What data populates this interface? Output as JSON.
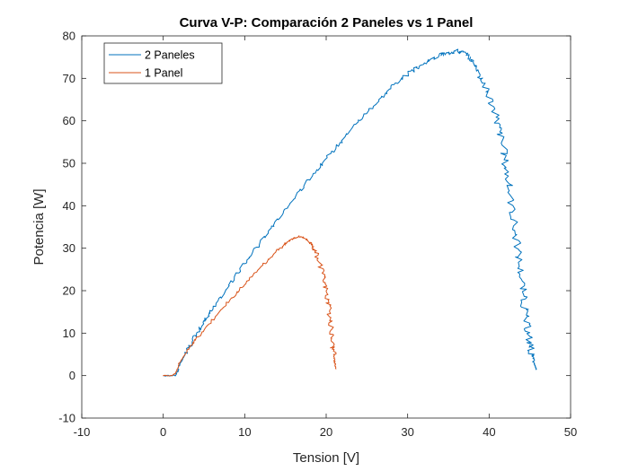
{
  "chart_data": {
    "type": "line",
    "title": "Curva V-P: Comparación 2 Paneles vs 1 Panel",
    "xlabel": "Tension [V]",
    "ylabel": "Potencia [W]",
    "xlim": [
      -10,
      50
    ],
    "ylim": [
      -10,
      80
    ],
    "xticks": [
      -10,
      0,
      10,
      20,
      30,
      40,
      50
    ],
    "yticks": [
      -10,
      0,
      10,
      20,
      30,
      40,
      50,
      60,
      70,
      80
    ],
    "grid": false,
    "box": true,
    "legend_position": "top-left",
    "series": [
      {
        "name": "2 Paneles",
        "color": "#0072BD",
        "noise": 0.6,
        "x": [
          0,
          1.5,
          2,
          3,
          4,
          5,
          6,
          8,
          10,
          12,
          14,
          16,
          18,
          20,
          22,
          24,
          26,
          28,
          30,
          32,
          34,
          35,
          36,
          37,
          38,
          39,
          40,
          41,
          41.5,
          42,
          42.5,
          43,
          43.5,
          44,
          44.3,
          44.6,
          45,
          45.3,
          45.5,
          45.7,
          45.8
        ],
        "y": [
          0,
          0,
          2.5,
          6,
          9.5,
          12.5,
          15.5,
          21,
          26.5,
          31.5,
          36.5,
          41.5,
          46.5,
          51,
          55.5,
          60,
          64,
          68,
          71,
          73.5,
          75.5,
          76,
          76.5,
          76,
          74,
          70.5,
          66,
          60,
          56,
          50,
          44,
          37,
          30,
          23,
          17,
          12,
          8,
          5,
          3,
          2,
          1.5
        ]
      },
      {
        "name": "1 Panel",
        "color": "#D95319",
        "noise": 0.4,
        "x": [
          0,
          1,
          1.5,
          2,
          3,
          4,
          6,
          8,
          10,
          12,
          14,
          15,
          16,
          17,
          18,
          18.5,
          19,
          19.5,
          20,
          20.3,
          20.6,
          20.8,
          21,
          21.1,
          21.2
        ],
        "y": [
          0,
          0,
          0.5,
          3,
          6,
          8.5,
          13,
          17.5,
          21.5,
          25.5,
          29.5,
          31,
          32.5,
          32.8,
          31.5,
          30,
          27.5,
          24.5,
          20,
          16,
          11,
          7,
          4,
          2.5,
          1.5
        ]
      }
    ]
  }
}
